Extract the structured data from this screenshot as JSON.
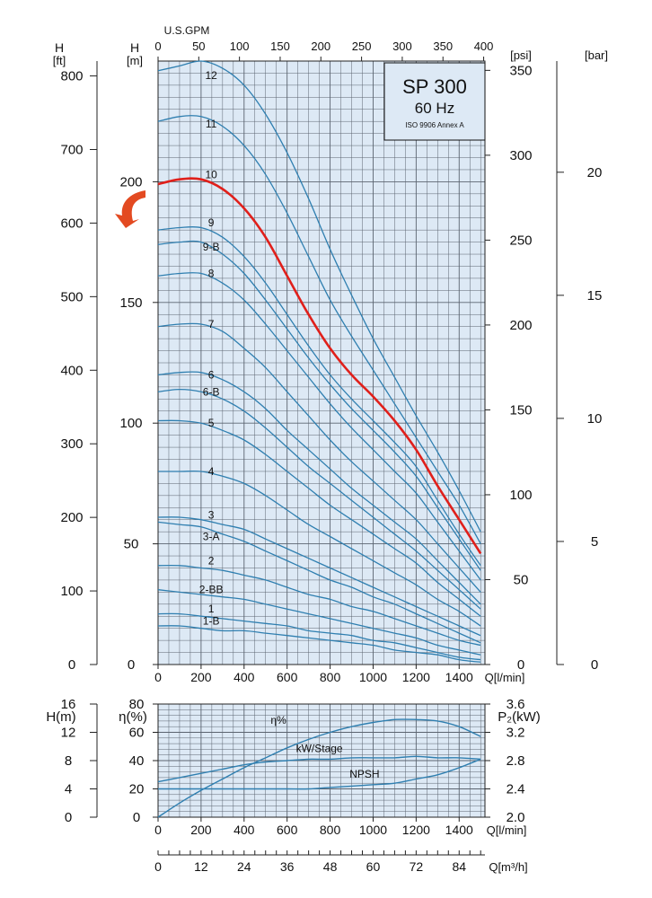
{
  "colors": {
    "plot_bg": "#dde9f5",
    "grid": "#5b6470",
    "curve": "#2f7fb0",
    "highlight_curve": "#e0201b",
    "arrow": "#e34a21",
    "title_box_bg": "#dde9f5"
  },
  "title_box": {
    "model": "SP 300",
    "frequency": "60 Hz",
    "standard": "ISO 9906 Annex A"
  },
  "chart_data": [
    {
      "type": "line",
      "name_label": "pump-performance-curves",
      "x_top_label": "U.S.GPM",
      "x_top_ticks": [
        "0",
        "50",
        "100",
        "150",
        "200",
        "250",
        "300",
        "350",
        "400"
      ],
      "xlabel": "Q[l/min]",
      "x_ticks": [
        "0",
        "200",
        "400",
        "600",
        "800",
        "1000",
        "1200",
        "1400"
      ],
      "xlim": [
        0,
        1520
      ],
      "ylabel_left_outer": "H",
      "ylabel_left_outer_unit": "[ft]",
      "y_left_outer_ticks": [
        "0",
        "100",
        "200",
        "300",
        "400",
        "500",
        "600",
        "700",
        "800"
      ],
      "ylabel_left_inner": "H",
      "ylabel_left_inner_unit": "[m]",
      "y_left_inner_ticks": [
        "0",
        "50",
        "100",
        "150",
        "200"
      ],
      "ylim": [
        0,
        250
      ],
      "ylabel_right_inner": "[psi]",
      "y_right_inner_ticks": [
        "0",
        "50",
        "100",
        "150",
        "200",
        "250",
        "300",
        "350"
      ],
      "ylabel_right_outer": "[bar]",
      "y_right_outer_ticks": [
        "0",
        "5",
        "10",
        "15",
        "20"
      ],
      "highlight_series": "10",
      "series": [
        {
          "name": "12",
          "label_at": [
            130,
            244
          ],
          "x": [
            0,
            100,
            200,
            300,
            400,
            500,
            600,
            700,
            800,
            900,
            1000,
            1100,
            1200,
            1300,
            1400,
            1500
          ],
          "y": [
            246,
            248,
            250,
            247,
            240,
            228,
            212,
            193,
            172,
            153,
            135,
            119,
            103,
            88,
            72,
            55
          ]
        },
        {
          "name": "11",
          "label_at": [
            130,
            224
          ],
          "x": [
            0,
            100,
            200,
            300,
            400,
            500,
            600,
            700,
            800,
            900,
            1000,
            1100,
            1200,
            1300,
            1400,
            1500
          ],
          "y": [
            225,
            227,
            227,
            223,
            215,
            203,
            187,
            169,
            151,
            136,
            122,
            108,
            94,
            80,
            66,
            50
          ]
        },
        {
          "name": "10",
          "label_at": [
            130,
            203
          ],
          "x": [
            0,
            100,
            200,
            300,
            400,
            500,
            600,
            700,
            800,
            900,
            1000,
            1100,
            1200,
            1300,
            1400,
            1500
          ],
          "y": [
            199,
            201,
            201,
            197,
            189,
            177,
            161,
            145,
            131,
            120,
            111,
            101,
            89,
            74,
            60,
            46
          ]
        },
        {
          "name": "9",
          "label_at": [
            130,
            183
          ],
          "x": [
            0,
            100,
            200,
            300,
            400,
            500,
            600,
            700,
            800,
            900,
            1000,
            1100,
            1200,
            1300,
            1400,
            1500
          ],
          "y": [
            180,
            181,
            181,
            177,
            169,
            158,
            145,
            132,
            120,
            110,
            101,
            92,
            82,
            68,
            54,
            41
          ]
        },
        {
          "name": "9-B",
          "label_at": [
            130,
            173
          ],
          "x": [
            0,
            100,
            200,
            300,
            400,
            500,
            600,
            700,
            800,
            900,
            1000,
            1100,
            1200,
            1300,
            1400,
            1500
          ],
          "y": [
            174,
            175,
            175,
            170,
            162,
            151,
            139,
            127,
            116,
            106,
            97,
            88,
            78,
            65,
            52,
            39
          ]
        },
        {
          "name": "8",
          "label_at": [
            130,
            162
          ],
          "x": [
            0,
            100,
            200,
            300,
            400,
            500,
            600,
            700,
            800,
            900,
            1000,
            1100,
            1200,
            1300,
            1400,
            1500
          ],
          "y": [
            161,
            162,
            162,
            158,
            151,
            141,
            130,
            119,
            108,
            98,
            89,
            80,
            71,
            59,
            47,
            35
          ]
        },
        {
          "name": "7",
          "label_at": [
            130,
            141
          ],
          "x": [
            0,
            100,
            200,
            300,
            400,
            500,
            600,
            700,
            800,
            900,
            1000,
            1100,
            1200,
            1300,
            1400,
            1500
          ],
          "y": [
            140,
            141,
            141,
            138,
            131,
            123,
            113,
            103,
            93,
            84,
            76,
            68,
            60,
            50,
            40,
            30
          ]
        },
        {
          "name": "6",
          "label_at": [
            130,
            120
          ],
          "x": [
            0,
            100,
            200,
            300,
            400,
            500,
            600,
            700,
            800,
            900,
            1000,
            1100,
            1200,
            1300,
            1400,
            1500
          ],
          "y": [
            120,
            121,
            121,
            118,
            113,
            106,
            97,
            89,
            81,
            73,
            66,
            59,
            52,
            43,
            34,
            25
          ]
        },
        {
          "name": "6-B",
          "label_at": [
            130,
            113
          ],
          "x": [
            0,
            100,
            200,
            300,
            400,
            500,
            600,
            700,
            800,
            900,
            1000,
            1100,
            1200,
            1300,
            1400,
            1500
          ],
          "y": [
            113,
            114,
            113,
            110,
            105,
            98,
            90,
            82,
            75,
            68,
            61,
            54,
            47,
            39,
            31,
            23
          ]
        },
        {
          "name": "5",
          "label_at": [
            130,
            100
          ],
          "x": [
            0,
            100,
            200,
            300,
            400,
            500,
            600,
            700,
            800,
            900,
            1000,
            1100,
            1200,
            1300,
            1400,
            1500
          ],
          "y": [
            101,
            101,
            100,
            97,
            93,
            87,
            80,
            73,
            66,
            60,
            54,
            48,
            42,
            34,
            27,
            20
          ]
        },
        {
          "name": "4",
          "label_at": [
            130,
            80
          ],
          "x": [
            0,
            100,
            200,
            300,
            400,
            500,
            600,
            700,
            800,
            900,
            1000,
            1100,
            1200,
            1300,
            1400,
            1500
          ],
          "y": [
            80,
            80,
            80,
            78,
            75,
            70,
            64,
            58,
            53,
            48,
            43,
            38,
            33,
            27,
            22,
            16
          ]
        },
        {
          "name": "3",
          "label_at": [
            130,
            62
          ],
          "x": [
            0,
            100,
            200,
            300,
            400,
            500,
            600,
            700,
            800,
            900,
            1000,
            1100,
            1200,
            1300,
            1400,
            1500
          ],
          "y": [
            61,
            61,
            60,
            58,
            56,
            52,
            48,
            44,
            40,
            36,
            32,
            28,
            24,
            20,
            16,
            12
          ]
        },
        {
          "name": "3-A",
          "label_at": [
            130,
            53
          ],
          "x": [
            0,
            100,
            200,
            300,
            400,
            500,
            600,
            700,
            800,
            900,
            1000,
            1100,
            1200,
            1300,
            1400,
            1500
          ],
          "y": [
            59,
            58,
            57,
            54,
            51,
            47,
            43,
            39,
            35,
            32,
            28,
            25,
            21,
            17,
            13,
            9
          ]
        },
        {
          "name": "2",
          "label_at": [
            130,
            43
          ],
          "x": [
            0,
            100,
            200,
            300,
            400,
            500,
            600,
            700,
            800,
            900,
            1000,
            1100,
            1200,
            1300,
            1400,
            1500
          ],
          "y": [
            41,
            41,
            40,
            39,
            37,
            35,
            32,
            29,
            27,
            24,
            22,
            19,
            16,
            13,
            10,
            8
          ]
        },
        {
          "name": "2-BB",
          "label_at": [
            130,
            31
          ],
          "x": [
            0,
            100,
            200,
            300,
            400,
            500,
            600,
            700,
            800,
            900,
            1000,
            1100,
            1200,
            1300,
            1400,
            1500
          ],
          "y": [
            31,
            30,
            29,
            28,
            27,
            25,
            23,
            21,
            19,
            17,
            15,
            13,
            11,
            8,
            6,
            4
          ]
        },
        {
          "name": "1",
          "label_at": [
            130,
            23
          ],
          "x": [
            0,
            100,
            200,
            300,
            400,
            500,
            600,
            700,
            800,
            900,
            1000,
            1100,
            1200,
            1300,
            1400,
            1500
          ],
          "y": [
            21,
            21,
            20,
            19,
            18,
            17,
            16,
            14,
            13,
            12,
            10,
            9,
            7,
            5,
            3,
            2
          ]
        },
        {
          "name": "1-B",
          "label_at": [
            130,
            18
          ],
          "x": [
            0,
            100,
            200,
            300,
            400,
            500,
            600,
            700,
            800,
            900,
            1000,
            1100,
            1200,
            1300,
            1400,
            1500
          ],
          "y": [
            16,
            16,
            15,
            14,
            14,
            13,
            12,
            11,
            10,
            9,
            8,
            6,
            5,
            4,
            2,
            1
          ]
        }
      ]
    },
    {
      "type": "line",
      "name_label": "efficiency-power-npsh",
      "xlabel": "Q[l/min]",
      "x_ticks": [
        "0",
        "200",
        "400",
        "600",
        "800",
        "1000",
        "1200",
        "1400"
      ],
      "xlim": [
        0,
        1520
      ],
      "x2label": "Q[m³/h]",
      "x2_ticks": [
        "0",
        "12",
        "24",
        "36",
        "48",
        "60",
        "72",
        "84"
      ],
      "ylabel_h": "H(m)",
      "y_h_ticks": [
        "0",
        "4",
        "8",
        "12",
        "16"
      ],
      "ylabel_eta": "η(%)",
      "y_eta_ticks": [
        "0",
        "20",
        "40",
        "60",
        "80"
      ],
      "ylim_eta": [
        0,
        80
      ],
      "ylabel_power": "P₂(kW)",
      "y_power_ticks": [
        "2.0",
        "2.4",
        "2.8",
        "3.2",
        "3.6"
      ],
      "series": [
        {
          "name": "η%",
          "label_at": [
            560,
            66
          ],
          "axis": "eta",
          "x": [
            0,
            100,
            200,
            300,
            400,
            500,
            600,
            700,
            800,
            900,
            1000,
            1100,
            1200,
            1300,
            1400,
            1500
          ],
          "y": [
            0,
            10,
            19,
            27,
            35,
            42,
            49,
            55,
            60,
            64,
            67,
            69,
            69,
            68,
            64,
            57
          ]
        },
        {
          "name": "kW/Stage",
          "label_at": [
            750,
            46
          ],
          "axis": "eta",
          "x": [
            0,
            100,
            200,
            300,
            400,
            500,
            600,
            700,
            800,
            900,
            1000,
            1100,
            1200,
            1300,
            1400,
            1500
          ],
          "y": [
            25,
            28,
            31,
            34,
            37,
            39,
            40,
            41,
            41,
            42,
            42,
            42,
            43,
            42,
            42,
            41
          ]
        },
        {
          "name": "NPSH",
          "label_at": [
            960,
            28
          ],
          "axis": "eta",
          "x": [
            0,
            100,
            200,
            300,
            400,
            500,
            600,
            700,
            800,
            900,
            1000,
            1100,
            1200,
            1300,
            1400,
            1500
          ],
          "y": [
            20,
            20,
            20,
            20,
            20,
            20,
            20,
            20,
            21,
            22,
            23,
            24,
            27,
            30,
            35,
            41
          ]
        }
      ]
    }
  ]
}
